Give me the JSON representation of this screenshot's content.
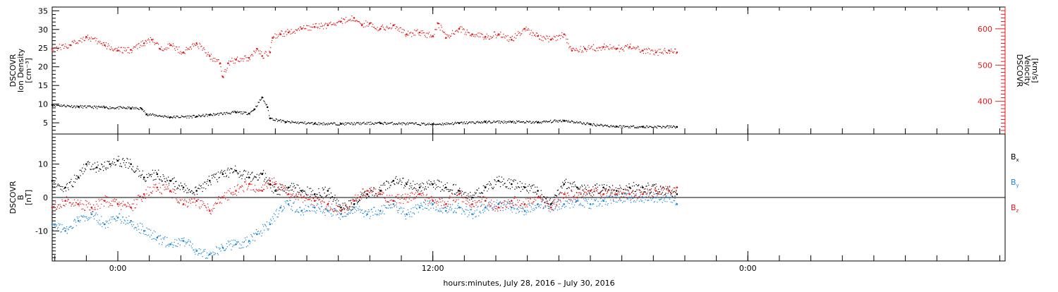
{
  "colors": {
    "black": "#000000",
    "red": "#e41a1c",
    "blue": "#1c86d6"
  },
  "chart_data": [
    {
      "type": "scatter",
      "panel": "top",
      "ylabel_left": [
        "DSCOVR",
        "Ion Density",
        "[cm⁻³]"
      ],
      "ylabel_right": [
        "DSCOVR",
        "Velocity",
        "[km/s]"
      ],
      "yticks_left": [
        "5",
        "10",
        "15",
        "20",
        "25",
        "30",
        "35"
      ],
      "yticks_right": [
        "400",
        "500",
        "600"
      ],
      "ylim_left": [
        2,
        36
      ],
      "ylim_right": [
        310,
        660
      ],
      "series": [
        {
          "axis": "left",
          "color": "#000000",
          "points": [
            [
              -2.5,
              9.8
            ],
            [
              -1.5,
              9.3
            ],
            [
              -0.5,
              9.1
            ],
            [
              0.5,
              8.9
            ],
            [
              0.9,
              8.8
            ],
            [
              1.1,
              7.3
            ],
            [
              2,
              6.5
            ],
            [
              3,
              6.7
            ],
            [
              3.5,
              7.1
            ],
            [
              4.5,
              7.8
            ],
            [
              5,
              7.5
            ],
            [
              5.2,
              8.6
            ],
            [
              5.5,
              11.8
            ],
            [
              5.7,
              9.2
            ],
            [
              5.8,
              6.2
            ],
            [
              6.4,
              5.2
            ],
            [
              7.5,
              4.8
            ],
            [
              8.5,
              4.7
            ],
            [
              10,
              4.9
            ],
            [
              12,
              4.6
            ],
            [
              13,
              4.9
            ],
            [
              14,
              5.2
            ],
            [
              15,
              5.2
            ],
            [
              16,
              5.1
            ],
            [
              17,
              5.6
            ],
            [
              18,
              4.6
            ],
            [
              19,
              4.0
            ],
            [
              20,
              3.9
            ],
            [
              21.3,
              3.9
            ]
          ]
        },
        {
          "axis": "right",
          "color": "#e41a1c",
          "points": [
            [
              -2.5,
              545
            ],
            [
              -1.8,
              555
            ],
            [
              -1.2,
              578
            ],
            [
              -0.5,
              555
            ],
            [
              0,
              540
            ],
            [
              0.5,
              542
            ],
            [
              1,
              560
            ],
            [
              1.3,
              570
            ],
            [
              1.6,
              545
            ],
            [
              2,
              555
            ],
            [
              2.5,
              535
            ],
            [
              3,
              560
            ],
            [
              3.5,
              525
            ],
            [
              3.9,
              505
            ],
            [
              4,
              468
            ],
            [
              4.2,
              505
            ],
            [
              4.5,
              515
            ],
            [
              5,
              520
            ],
            [
              5.3,
              545
            ],
            [
              5.5,
              525
            ],
            [
              5.8,
              535
            ],
            [
              5.9,
              575
            ],
            [
              6.2,
              585
            ],
            [
              6.5,
              590
            ],
            [
              7,
              600
            ],
            [
              7.5,
              605
            ],
            [
              8,
              610
            ],
            [
              8.5,
              620
            ],
            [
              9,
              630
            ],
            [
              9.3,
              610
            ],
            [
              9.6,
              615
            ],
            [
              10,
              600
            ],
            [
              10.5,
              610
            ],
            [
              11,
              585
            ],
            [
              11.5,
              590
            ],
            [
              12,
              580
            ],
            [
              12.2,
              615
            ],
            [
              12.5,
              575
            ],
            [
              13,
              600
            ],
            [
              13.5,
              585
            ],
            [
              14,
              578
            ],
            [
              14.5,
              585
            ],
            [
              15,
              570
            ],
            [
              15.5,
              600
            ],
            [
              16,
              580
            ],
            [
              16.5,
              570
            ],
            [
              17,
              585
            ],
            [
              17.3,
              540
            ],
            [
              17.8,
              545
            ],
            [
              18.5,
              550
            ],
            [
              19,
              545
            ],
            [
              19.5,
              550
            ],
            [
              20,
              540
            ],
            [
              20.5,
              535
            ],
            [
              21,
              540
            ],
            [
              21.3,
              535
            ]
          ]
        }
      ]
    },
    {
      "type": "scatter",
      "panel": "bottom",
      "ylabel": [
        "DSCOVR",
        "B",
        "[nT]"
      ],
      "yticks": [
        "-10",
        "0",
        "10"
      ],
      "ylim": [
        -19,
        19
      ],
      "zero_line": true,
      "legend": [
        {
          "label": "B",
          "sub": "x",
          "color": "#000000"
        },
        {
          "label": "B",
          "sub": "y",
          "color": "#1c86d6"
        },
        {
          "label": "B",
          "sub": "z",
          "color": "#e41a1c"
        }
      ],
      "series": [
        {
          "name": "Bx",
          "color": "#000000",
          "points": [
            [
              -2.5,
              5
            ],
            [
              -2,
              3
            ],
            [
              -1.5,
              6
            ],
            [
              -1.2,
              10
            ],
            [
              -0.8,
              9
            ],
            [
              -0.3,
              10
            ],
            [
              0,
              11
            ],
            [
              0.5,
              10
            ],
            [
              1,
              6
            ],
            [
              1.5,
              7
            ],
            [
              2,
              5
            ],
            [
              2.5,
              3
            ],
            [
              3,
              2
            ],
            [
              3.5,
              5
            ],
            [
              4,
              7
            ],
            [
              4.5,
              8
            ],
            [
              5,
              6
            ],
            [
              5.5,
              7
            ],
            [
              5.8,
              4
            ],
            [
              6,
              2
            ],
            [
              6.5,
              3
            ],
            [
              7,
              2
            ],
            [
              7.5,
              1
            ],
            [
              8,
              2
            ],
            [
              8.5,
              -3
            ],
            [
              9,
              -2
            ],
            [
              9.5,
              1
            ],
            [
              10,
              2
            ],
            [
              10.5,
              5
            ],
            [
              11,
              4
            ],
            [
              11.5,
              3
            ],
            [
              12,
              4
            ],
            [
              12.5,
              3
            ],
            [
              13,
              2
            ],
            [
              13.5,
              0
            ],
            [
              14,
              3
            ],
            [
              14.5,
              5
            ],
            [
              15,
              4
            ],
            [
              15.5,
              3
            ],
            [
              16,
              2
            ],
            [
              16.5,
              -2
            ],
            [
              17,
              4
            ],
            [
              17.5,
              3
            ],
            [
              18,
              2
            ],
            [
              18.5,
              3
            ],
            [
              19,
              2
            ],
            [
              19.5,
              3
            ],
            [
              20,
              3
            ],
            [
              21,
              2
            ],
            [
              21.3,
              1
            ]
          ]
        },
        {
          "name": "By",
          "color": "#1c86d6",
          "points": [
            [
              -2.5,
              -8
            ],
            [
              -2,
              -10
            ],
            [
              -1.5,
              -7
            ],
            [
              -1,
              -5
            ],
            [
              -0.5,
              -8
            ],
            [
              0,
              -6
            ],
            [
              0.5,
              -7
            ],
            [
              1,
              -10
            ],
            [
              1.5,
              -12
            ],
            [
              2,
              -14
            ],
            [
              2.5,
              -13
            ],
            [
              3,
              -16
            ],
            [
              3.5,
              -17
            ],
            [
              4,
              -15
            ],
            [
              4.5,
              -14
            ],
            [
              5,
              -13
            ],
            [
              5.3,
              -11
            ],
            [
              5.8,
              -8
            ],
            [
              6.2,
              -3
            ],
            [
              6.5,
              -2
            ],
            [
              7,
              -4
            ],
            [
              7.5,
              -3
            ],
            [
              8,
              -4
            ],
            [
              8.5,
              -5
            ],
            [
              9,
              -3
            ],
            [
              9.5,
              -5
            ],
            [
              10,
              -4
            ],
            [
              10.5,
              -2
            ],
            [
              11,
              -5
            ],
            [
              11.5,
              -3
            ],
            [
              12,
              -2
            ],
            [
              12.5,
              -4
            ],
            [
              13,
              -3
            ],
            [
              13.5,
              -5
            ],
            [
              14,
              -3
            ],
            [
              14.5,
              -2
            ],
            [
              15,
              -3
            ],
            [
              15.5,
              -4
            ],
            [
              16,
              -2
            ],
            [
              16.5,
              -3
            ],
            [
              17,
              -2
            ],
            [
              17.5,
              -1
            ],
            [
              18,
              -2
            ],
            [
              18.5,
              -1
            ],
            [
              19,
              0
            ],
            [
              19.5,
              0
            ],
            [
              20,
              0
            ],
            [
              20.5,
              0
            ],
            [
              21,
              0
            ],
            [
              21.3,
              -2
            ]
          ]
        },
        {
          "name": "Bz",
          "color": "#e41a1c",
          "points": [
            [
              -2.5,
              -3
            ],
            [
              -2,
              -1
            ],
            [
              -1.5,
              -2
            ],
            [
              -1,
              -3
            ],
            [
              -0.5,
              -1
            ],
            [
              0,
              -2
            ],
            [
              0.5,
              -3
            ],
            [
              1,
              1
            ],
            [
              1.5,
              3
            ],
            [
              2,
              2
            ],
            [
              2.5,
              -2
            ],
            [
              3,
              -1
            ],
            [
              3.5,
              -4
            ],
            [
              4,
              0
            ],
            [
              4.5,
              2
            ],
            [
              5,
              4
            ],
            [
              5.5,
              2
            ],
            [
              5.8,
              5
            ],
            [
              6,
              4
            ],
            [
              6.5,
              1
            ],
            [
              7,
              0
            ],
            [
              7.5,
              -1
            ],
            [
              8,
              -2
            ],
            [
              8.5,
              -4
            ],
            [
              9,
              -1
            ],
            [
              9.5,
              2
            ],
            [
              10,
              1
            ],
            [
              10.5,
              -1
            ],
            [
              11,
              0
            ],
            [
              11.5,
              1
            ],
            [
              12,
              -1
            ],
            [
              12.5,
              -2
            ],
            [
              13,
              1
            ],
            [
              13.5,
              -2
            ],
            [
              14,
              -1
            ],
            [
              14.5,
              -3
            ],
            [
              15,
              -1
            ],
            [
              15.5,
              -2
            ],
            [
              16,
              0
            ],
            [
              16.5,
              -3
            ],
            [
              17,
              1
            ],
            [
              17.5,
              0
            ],
            [
              18,
              2
            ],
            [
              18.5,
              1
            ],
            [
              19,
              1
            ],
            [
              19.5,
              1
            ],
            [
              20,
              1
            ],
            [
              20.5,
              2
            ],
            [
              21,
              2
            ],
            [
              21.3,
              3
            ]
          ]
        }
      ]
    }
  ],
  "xaxis": {
    "xlim": [
      -2.5,
      33.8
    ],
    "major_ticks": [
      {
        "h": 0,
        "label": "0:00"
      },
      {
        "h": 12,
        "label": "12:00"
      },
      {
        "h": 24,
        "label": "0:00"
      }
    ],
    "minor_step_hours": 1.2,
    "title": "hours:minutes, July 28, 2016 – July 30, 2016"
  }
}
